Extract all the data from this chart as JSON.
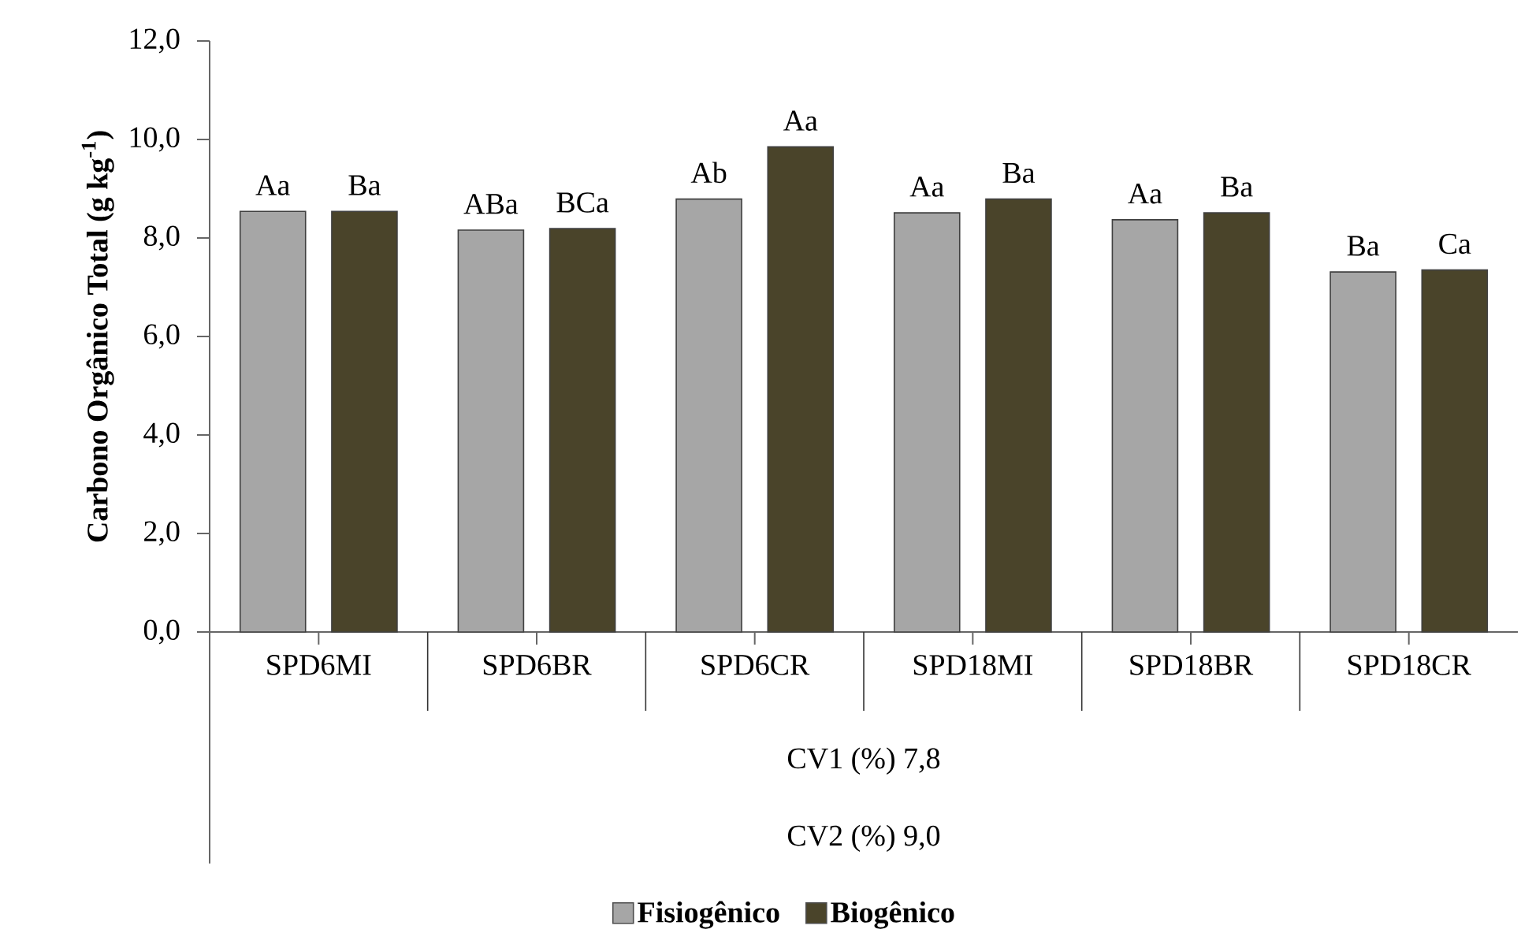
{
  "chart_data": {
    "type": "bar",
    "ylabel": "Carbono Orgânico Total  (g kg$^{-1}$)",
    "categories": [
      "SPD6MI",
      "SPD6BR",
      "SPD6CR",
      "SPD18MI",
      "SPD18BR",
      "SPD18CR"
    ],
    "series": [
      {
        "name": "Fisiogênico",
        "color": "#a6a6a6",
        "values": [
          8.54,
          8.16,
          8.79,
          8.51,
          8.37,
          7.31
        ],
        "value_labels": [
          "Aa",
          "ABa",
          "Ab",
          "Aa",
          "Aa",
          "Ba"
        ]
      },
      {
        "name": "Biogênico",
        "color": "#4a442a",
        "values": [
          8.54,
          8.19,
          9.85,
          8.79,
          8.51,
          7.35
        ],
        "value_labels": [
          "Ba",
          "BCa",
          "Aa",
          "Ba",
          "Ba",
          "Ca"
        ]
      }
    ],
    "ylim": [
      0,
      12
    ],
    "yticks": [
      {
        "value": 0,
        "label": "0,0"
      },
      {
        "value": 2,
        "label": "2,0"
      },
      {
        "value": 4,
        "label": "4,0"
      },
      {
        "value": 6,
        "label": "6,0"
      },
      {
        "value": 8,
        "label": "8,0"
      },
      {
        "value": 10,
        "label": "10,0"
      },
      {
        "value": 12,
        "label": "12,0"
      }
    ],
    "annotations": [
      "CV1 (%) 7,8",
      "CV2 (%) 9,0"
    ],
    "grid": false,
    "legend": "bottom"
  }
}
